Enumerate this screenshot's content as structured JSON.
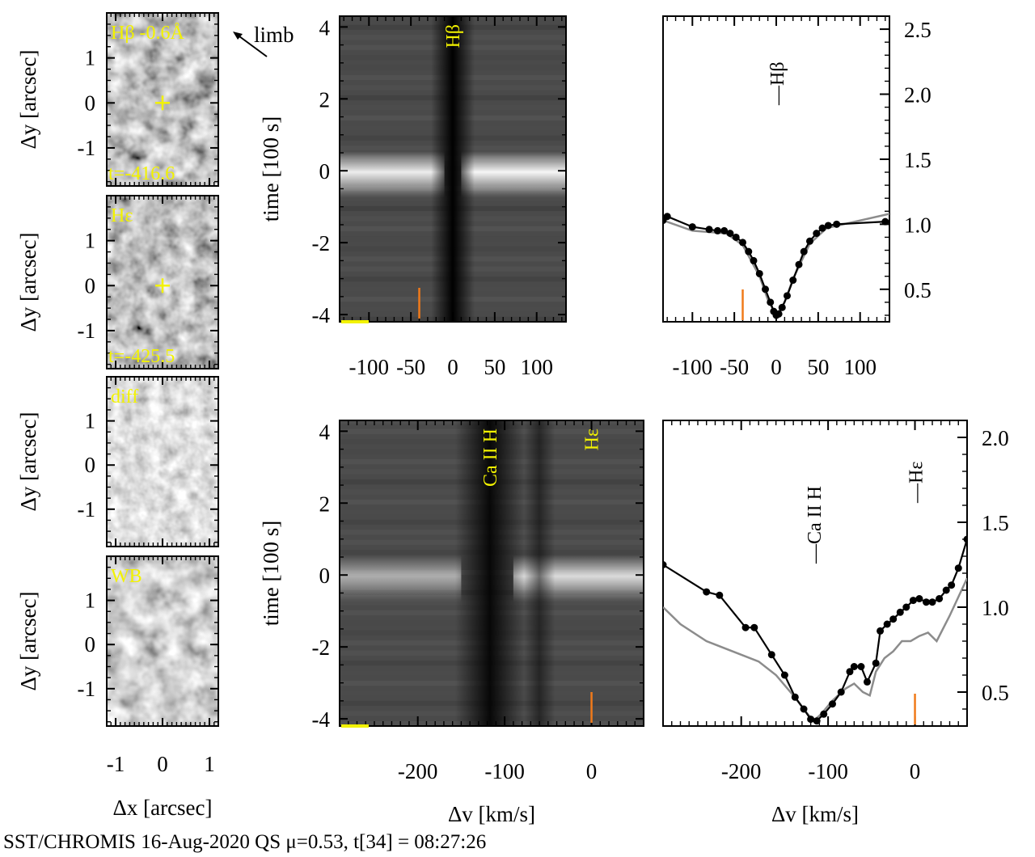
{
  "footer": "SST/CHROMIS 16-Aug-2020 QS μ=0.53, t[34] = 08:27:26",
  "colors": {
    "label": "#f2f200",
    "marker_orange": "#f07a1a",
    "observed_line": "#000000",
    "reference_line": "#8c8c8c"
  },
  "image_panels": {
    "ylabel": "Δy [arcsec]",
    "xlabel": "Δx [arcsec]",
    "xticks": [
      "-1",
      "0",
      "1"
    ],
    "yticks": [
      "1",
      "0",
      "-1"
    ],
    "panels": [
      {
        "label": "Hβ -0.6Å",
        "time": "t=-416.6",
        "cross": true
      },
      {
        "label": "Hε",
        "time": "t=-425.5",
        "cross": true
      },
      {
        "label": "diff",
        "time": "",
        "cross": false
      },
      {
        "label": "WB",
        "time": "",
        "cross": false
      }
    ],
    "limb_label": "limb"
  },
  "chart_data": [
    {
      "type": "heatmap",
      "title": "",
      "ylabel": "time [100 s]",
      "xlabel": "",
      "x_tick_labels": [
        "-100",
        "-50",
        "0",
        "50",
        "100"
      ],
      "x_ticks": [
        -100,
        -50,
        0,
        50,
        100
      ],
      "xlim": [
        -135,
        135
      ],
      "y_ticks": [
        4,
        2,
        0,
        -2,
        -4
      ],
      "ylim": [
        -4.2,
        4.3
      ],
      "line_labels": [
        {
          "text": "Hβ",
          "x": 0
        }
      ],
      "features": {
        "dark_core_center": 0,
        "bright_band_time": 0
      },
      "orange_marker_x": -40
    },
    {
      "type": "line",
      "title": "",
      "xlabel": "",
      "ylabel": "",
      "x_tick_labels": [
        "-100",
        "-50",
        "0",
        "50",
        "100"
      ],
      "x_ticks": [
        -100,
        -50,
        0,
        50,
        100
      ],
      "xlim": [
        -135,
        135
      ],
      "y_ticks": [
        2.5,
        2.0,
        1.5,
        1.0,
        0.5
      ],
      "y_tick_labels": [
        "2.5",
        "2.0",
        "1.5",
        "1.0",
        "0.5"
      ],
      "ylim": [
        0.25,
        2.6
      ],
      "y_axis_side": "right",
      "line_labels": [
        {
          "text": "Hβ",
          "x": 0
        }
      ],
      "orange_marker_x": -40,
      "series": [
        {
          "role": "observed",
          "x": [
            -135,
            -130,
            -100,
            -80,
            -70,
            -62,
            -55,
            -48,
            -40,
            -33,
            -27,
            -20,
            -13,
            -7,
            -3,
            0,
            3,
            7,
            13,
            20,
            27,
            33,
            40,
            48,
            55,
            62,
            72,
            130
          ],
          "y": [
            1.03,
            1.06,
            0.98,
            0.96,
            0.95,
            0.95,
            0.93,
            0.9,
            0.86,
            0.79,
            0.72,
            0.62,
            0.5,
            0.4,
            0.33,
            0.3,
            0.31,
            0.36,
            0.45,
            0.57,
            0.69,
            0.79,
            0.87,
            0.93,
            0.97,
            0.99,
            1.0,
            1.02
          ]
        },
        {
          "role": "reference",
          "x": [
            -135,
            -100,
            -60,
            -40,
            -20,
            -10,
            0,
            10,
            20,
            40,
            60,
            135
          ],
          "y": [
            1.03,
            0.95,
            0.93,
            0.84,
            0.6,
            0.42,
            0.3,
            0.4,
            0.58,
            0.85,
            0.97,
            1.08
          ]
        }
      ]
    },
    {
      "type": "heatmap",
      "title": "",
      "ylabel": "time [100 s]",
      "xlabel": "Δv [km/s]",
      "x_tick_labels": [
        "-200",
        "-100",
        "0"
      ],
      "x_ticks": [
        -200,
        -100,
        0
      ],
      "xlim": [
        -290,
        60
      ],
      "y_ticks": [
        4,
        2,
        0,
        -2,
        -4
      ],
      "ylim": [
        -4.2,
        4.3
      ],
      "line_labels": [
        {
          "text": "Ca II H",
          "x": -117
        },
        {
          "text": "Hε",
          "x": 0
        }
      ],
      "features": {
        "dark_core_center": -117,
        "bright_band_time": 0
      },
      "orange_marker_x": 0
    },
    {
      "type": "line",
      "title": "",
      "xlabel": "Δv [km/s]",
      "ylabel": "",
      "x_tick_labels": [
        "-200",
        "-100",
        "0"
      ],
      "x_ticks": [
        -200,
        -100,
        0
      ],
      "xlim": [
        -290,
        60
      ],
      "y_ticks": [
        2.0,
        1.5,
        1.0,
        0.5
      ],
      "y_tick_labels": [
        "2.0",
        "1.5",
        "1.0",
        "0.5"
      ],
      "ylim": [
        0.3,
        2.1
      ],
      "y_axis_side": "right",
      "line_labels": [
        {
          "text": "Ca II H",
          "x": -117
        },
        {
          "text": "Hε",
          "x": 0
        }
      ],
      "orange_marker_x": 0,
      "series": [
        {
          "role": "observed",
          "x": [
            -290,
            -240,
            -225,
            -195,
            -185,
            -165,
            -150,
            -138,
            -128,
            -120,
            -113,
            -105,
            -95,
            -85,
            -75,
            -70,
            -62,
            -55,
            -45,
            -40,
            -32,
            -25,
            -17,
            -10,
            -2,
            5,
            13,
            20,
            28,
            36,
            42,
            50,
            60
          ],
          "y": [
            1.25,
            1.09,
            1.07,
            0.88,
            0.88,
            0.72,
            0.6,
            0.47,
            0.4,
            0.34,
            0.33,
            0.37,
            0.43,
            0.5,
            0.62,
            0.65,
            0.65,
            0.56,
            0.67,
            0.86,
            0.9,
            0.93,
            0.97,
            1.0,
            1.04,
            1.05,
            1.03,
            1.03,
            1.05,
            1.1,
            1.13,
            1.23,
            1.4
          ]
        },
        {
          "role": "reference",
          "x": [
            -290,
            -270,
            -240,
            -200,
            -180,
            -160,
            -140,
            -125,
            -117,
            -108,
            -95,
            -80,
            -70,
            -60,
            -52,
            -45,
            -35,
            -25,
            -15,
            -5,
            5,
            15,
            25,
            40,
            60
          ],
          "y": [
            1.0,
            0.9,
            0.8,
            0.72,
            0.68,
            0.6,
            0.48,
            0.38,
            0.33,
            0.37,
            0.45,
            0.52,
            0.55,
            0.5,
            0.48,
            0.62,
            0.7,
            0.74,
            0.8,
            0.8,
            0.83,
            0.85,
            0.8,
            0.95,
            1.17
          ]
        }
      ]
    }
  ]
}
